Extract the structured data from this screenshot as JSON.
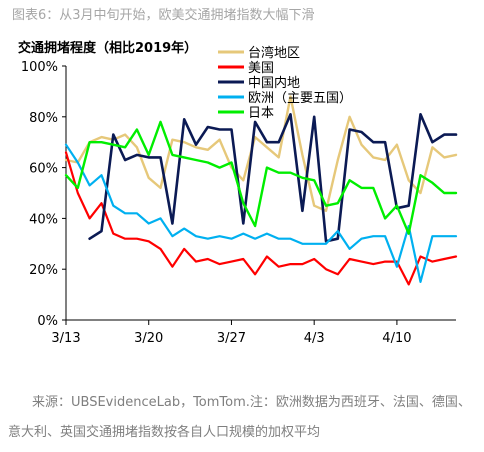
{
  "figure_title": "图表6：从3月中旬开始，欧美交通拥堵指数大幅下滑",
  "source_note": "来源：UBSEvidenceLab，TomTom.注：欧洲数据为西班牙、法国、德国、意大利、英国交通拥堵指数按各自人口规模的加权平均",
  "chart_data": {
    "type": "line",
    "title": "交通拥堵程度（相比2019年）",
    "xlabel": "",
    "ylabel": "",
    "ylim": [
      0,
      100
    ],
    "y_ticks": [
      "0%",
      "20%",
      "40%",
      "60%",
      "80%",
      "100%"
    ],
    "x_ticks": [
      {
        "label": "3/13",
        "day": 0
      },
      {
        "label": "3/20",
        "day": 7
      },
      {
        "label": "3/27",
        "day": 14
      },
      {
        "label": "4/3",
        "day": 21
      },
      {
        "label": "4/10",
        "day": 28
      }
    ],
    "x_range": [
      0,
      33
    ],
    "legend_position": "top-right",
    "grid": false,
    "series": [
      {
        "name": "台湾地区",
        "color": "#e6c87a",
        "width": 2.4,
        "values": [
          63,
          62,
          70,
          72,
          71,
          73,
          68,
          56,
          52,
          71,
          70,
          68,
          67,
          71,
          60,
          55,
          72,
          68,
          64,
          88,
          65,
          45,
          43,
          63,
          80,
          69,
          64,
          63,
          69,
          55,
          50,
          68,
          64,
          65
        ]
      },
      {
        "name": "美国",
        "color": "#ff0000",
        "width": 2.2,
        "values": [
          66,
          50,
          40,
          46,
          34,
          32,
          32,
          31,
          28,
          21,
          28,
          23,
          24,
          22,
          23,
          24,
          18,
          25,
          21,
          22,
          22,
          24,
          20,
          18,
          24,
          23,
          22,
          23,
          23,
          14,
          25,
          23,
          24,
          25
        ]
      },
      {
        "name": "中国内地",
        "color": "#0b1a54",
        "width": 2.6,
        "values": [
          null,
          null,
          32,
          35,
          73,
          63,
          65,
          64,
          64,
          38,
          79,
          69,
          76,
          75,
          75,
          38,
          78,
          70,
          70,
          81,
          43,
          80,
          31,
          32,
          75,
          74,
          70,
          70,
          44,
          45,
          81,
          70,
          73,
          73
        ]
      },
      {
        "name": "欧洲（主要五国）",
        "color": "#00b0f0",
        "width": 2.2,
        "values": [
          69,
          62,
          53,
          57,
          45,
          42,
          42,
          38,
          40,
          33,
          36,
          33,
          32,
          33,
          32,
          34,
          32,
          34,
          32,
          32,
          30,
          30,
          30,
          35,
          28,
          32,
          33,
          33,
          21,
          37,
          15,
          33,
          33,
          33
        ]
      },
      {
        "name": "日本",
        "color": "#00ee00",
        "width": 2.4,
        "values": [
          57,
          52,
          70,
          70,
          69,
          68,
          75,
          65,
          78,
          65,
          64,
          63,
          62,
          60,
          62,
          46,
          37,
          60,
          58,
          58,
          56,
          55,
          45,
          46,
          55,
          52,
          52,
          40,
          45,
          34,
          57,
          54,
          50,
          50
        ]
      }
    ]
  }
}
